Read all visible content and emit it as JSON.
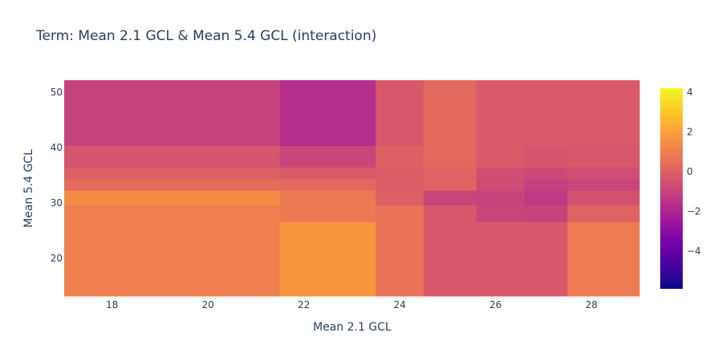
{
  "chart_data": {
    "type": "heatmap",
    "title": "Term: Mean 2.1 GCL & Mean 5.4 GCL (interaction)",
    "xlabel": "Mean 2.1 GCL",
    "ylabel": "Mean 5.4 GCL",
    "x_edges": [
      17.0,
      21.5,
      23.5,
      24.5,
      25.6,
      26.6,
      27.5,
      29.0
    ],
    "y_edges": [
      13.2,
      26.6,
      29.6,
      32.3,
      34.4,
      36.5,
      40.4,
      52.2
    ],
    "z": [
      [
        1.0,
        1.7,
        0.6,
        -0.3,
        -0.3,
        -0.3,
        0.9
      ],
      [
        1.0,
        0.8,
        0.6,
        -0.3,
        -0.9,
        -1.0,
        0.1
      ],
      [
        1.4,
        0.8,
        0.0,
        -0.9,
        -1.0,
        -1.3,
        -0.5
      ],
      [
        0.4,
        0.3,
        -0.1,
        0.1,
        -0.7,
        -1.1,
        -0.9
      ],
      [
        0.0,
        -0.2,
        -0.1,
        0.1,
        -0.6,
        -0.8,
        -0.6
      ],
      [
        -0.4,
        -0.9,
        0.0,
        0.3,
        -0.2,
        -0.4,
        -0.3
      ],
      [
        -1.0,
        -1.7,
        -0.3,
        0.3,
        -0.2,
        -0.2,
        -0.2
      ]
    ],
    "xticks": [
      18,
      20,
      22,
      24,
      26,
      28
    ],
    "xtick_labels": [
      "18",
      "20",
      "22",
      "24",
      "26",
      "28"
    ],
    "yticks": [
      20,
      30,
      40,
      50
    ],
    "ytick_labels": [
      "20",
      "30",
      "40",
      "50"
    ],
    "xlim": [
      17.0,
      29.0
    ],
    "ylim": [
      13.2,
      52.2
    ],
    "colorscale": [
      "#0d0887",
      "#46039f",
      "#7201a8",
      "#9c179e",
      "#bd3786",
      "#d8576b",
      "#ed7953",
      "#fb9f3a",
      "#fdca26",
      "#f0f921"
    ],
    "colorbar": {
      "range": [
        -5.9,
        4.2
      ],
      "ticks": [
        4,
        2,
        0,
        -2,
        -4
      ],
      "tick_labels": [
        "4",
        "2",
        "0",
        "−2",
        "−4"
      ]
    }
  }
}
